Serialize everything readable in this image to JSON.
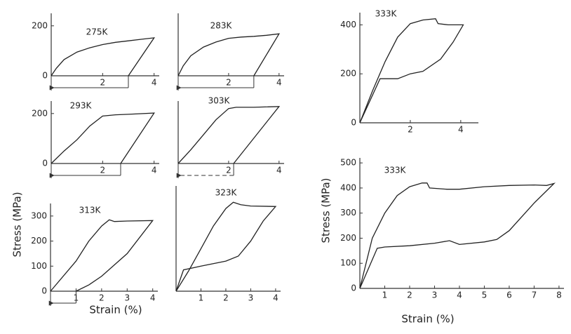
{
  "chart_data": [
    {
      "type": "line",
      "title": "275K",
      "xlim": [
        0,
        4.2
      ],
      "ylim": [
        0,
        250
      ],
      "xticks": [
        2,
        4
      ],
      "yticks": [
        0,
        200
      ],
      "residual_strain": 3.0,
      "series": [
        {
          "color": "#222",
          "x": [
            0,
            0.2,
            0.5,
            1,
            1.5,
            2,
            2.5,
            3,
            3.5,
            4,
            3.0
          ],
          "values": [
            0,
            30,
            65,
            95,
            112,
            125,
            134,
            140,
            146,
            152,
            0
          ]
        }
      ]
    },
    {
      "type": "line",
      "title": "283K",
      "xlim": [
        0,
        4.2
      ],
      "ylim": [
        0,
        250
      ],
      "xticks": [
        2,
        4
      ],
      "yticks": [],
      "residual_strain": 3.0,
      "series": [
        {
          "color": "#222",
          "x": [
            0,
            0.2,
            0.5,
            1,
            1.5,
            2,
            2.5,
            3,
            3.5,
            4,
            3.0
          ],
          "values": [
            0,
            40,
            80,
            115,
            135,
            150,
            155,
            158,
            162,
            168,
            0
          ]
        }
      ]
    },
    {
      "type": "line",
      "title": "293K",
      "xlim": [
        0,
        4.2
      ],
      "ylim": [
        0,
        250
      ],
      "xticks": [
        2,
        4
      ],
      "yticks": [
        0,
        200
      ],
      "residual_strain": 2.7,
      "series": [
        {
          "color": "#222",
          "x": [
            0,
            0.5,
            1,
            1.5,
            2,
            2.5,
            3,
            4,
            2.7
          ],
          "values": [
            0,
            50,
            95,
            150,
            190,
            195,
            197,
            202,
            0
          ]
        }
      ]
    },
    {
      "type": "line",
      "title": "303K",
      "xlim": [
        0,
        4.2
      ],
      "ylim": [
        0,
        250
      ],
      "xticks": [
        2,
        4
      ],
      "yticks": [],
      "residual_strain": 2.2,
      "residual_style": "dashed",
      "series": [
        {
          "color": "#222",
          "x": [
            0,
            0.5,
            1,
            1.5,
            2,
            2.3,
            3,
            4,
            2.2
          ],
          "values": [
            0,
            55,
            115,
            175,
            220,
            225,
            225,
            228,
            0
          ]
        }
      ]
    },
    {
      "type": "line",
      "title": "313K",
      "xlim": [
        0,
        4.2
      ],
      "ylim": [
        0,
        350
      ],
      "xticks": [
        1,
        2,
        3,
        4
      ],
      "yticks": [
        0,
        100,
        200,
        300
      ],
      "residual_strain": 1.0,
      "xlabel": "Strain (%)",
      "ylabel": "Stress (MPa)",
      "series": [
        {
          "color": "#222",
          "x": [
            0,
            1,
            1.5,
            2,
            2.3,
            2.5,
            3,
            4,
            3,
            2,
            1.5,
            1
          ],
          "values": [
            0,
            120,
            200,
            260,
            285,
            278,
            280,
            282,
            150,
            60,
            25,
            0
          ]
        }
      ]
    },
    {
      "type": "line",
      "title": "323K",
      "xlim": [
        0,
        4.2
      ],
      "ylim": [
        0,
        420
      ],
      "xticks": [
        1,
        2,
        3,
        4
      ],
      "yticks": [],
      "series": [
        {
          "color": "#222",
          "x": [
            0,
            0.5,
            1,
            1.5,
            2,
            2.3,
            2.6,
            3,
            4,
            3.5,
            3,
            2.5,
            2,
            1,
            0.3,
            0
          ],
          "values": [
            0,
            80,
            170,
            260,
            330,
            355,
            345,
            340,
            338,
            280,
            200,
            140,
            120,
            100,
            85,
            0
          ]
        }
      ]
    },
    {
      "type": "line",
      "title": "333K",
      "xlim": [
        0,
        4.7
      ],
      "ylim": [
        0,
        450
      ],
      "xticks": [
        2,
        4
      ],
      "yticks": [
        0,
        200,
        400
      ],
      "series": [
        {
          "color": "#222",
          "x": [
            0,
            0.5,
            1,
            1.5,
            2,
            2.5,
            3,
            3.1,
            3.5,
            4.1,
            3.7,
            3.2,
            2.5,
            2,
            1.5,
            1,
            0.8,
            0
          ],
          "values": [
            0,
            130,
            250,
            350,
            405,
            420,
            425,
            405,
            400,
            400,
            330,
            260,
            210,
            200,
            180,
            180,
            180,
            0
          ]
        }
      ]
    },
    {
      "type": "line",
      "title": "333K",
      "xlim": [
        0,
        8.2
      ],
      "ylim": [
        0,
        520
      ],
      "xticks": [
        1,
        2,
        3,
        4,
        5,
        6,
        7,
        8
      ],
      "yticks": [
        0,
        100,
        200,
        300,
        400,
        500
      ],
      "xlabel": "Strain (%)",
      "ylabel": "Stress (MPa)",
      "series": [
        {
          "color": "#222",
          "x": [
            0,
            0.5,
            1,
            1.5,
            2,
            2.5,
            2.7,
            2.8,
            3.5,
            4,
            5,
            6,
            7,
            7.5,
            7.8,
            7,
            6,
            5.5,
            5,
            4,
            3.6,
            3,
            2,
            1,
            0.7,
            0
          ],
          "values": [
            0,
            200,
            300,
            370,
            405,
            420,
            420,
            400,
            395,
            395,
            405,
            410,
            412,
            410,
            418,
            340,
            230,
            195,
            185,
            175,
            190,
            180,
            170,
            165,
            160,
            0
          ]
        }
      ]
    }
  ]
}
